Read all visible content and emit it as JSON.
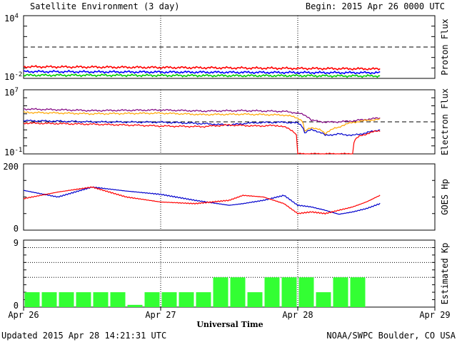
{
  "header": {
    "title": "Satellite Environment (3 day)",
    "begin": "Begin:  2015 Apr 26 0000 UTC"
  },
  "footer": {
    "updated": "Updated 2015 Apr 28 14:21:31 UTC",
    "credit": "NOAA/SWPC Boulder, CO USA"
  },
  "chart_data": {
    "type": "line",
    "xlabel": "Universal Time",
    "x_ticks": [
      "Apr 26",
      "Apr 27",
      "Apr 28",
      "Apr 29"
    ],
    "x_range_days": [
      0,
      3
    ],
    "data_end_day": 2.6,
    "panels": [
      {
        "id": "proton",
        "ylabel": "Proton Flux",
        "scale": "log",
        "ylim_exp": [
          -2,
          4
        ],
        "tick_labels": [
          {
            "base": "10",
            "exp": "4"
          },
          {
            "base": "10",
            "exp": "-2"
          }
        ],
        "threshold": 10,
        "series": [
          {
            "color": "#ff0000",
            "x": [
              0,
              0.5,
              1.0,
              1.5,
              2.0,
              2.3,
              2.6
            ],
            "y": [
              0.13,
              0.12,
              0.11,
              0.1,
              0.09,
              0.085,
              0.08
            ]
          },
          {
            "color": "#0000ff",
            "x": [
              0,
              0.5,
              1.0,
              1.5,
              2.0,
              2.3,
              2.6
            ],
            "y": [
              0.045,
              0.042,
              0.04,
              0.038,
              0.036,
              0.035,
              0.035
            ]
          },
          {
            "color": "#00cc00",
            "x": [
              0,
              0.5,
              1.0,
              1.5,
              2.0,
              2.3,
              2.6
            ],
            "y": [
              0.02,
              0.02,
              0.019,
              0.018,
              0.018,
              0.017,
              0.017
            ]
          }
        ]
      },
      {
        "id": "electron",
        "ylabel": "Electron Flux",
        "scale": "log",
        "ylim_exp": [
          -1,
          7
        ],
        "tick_labels": [
          {
            "base": "10",
            "exp": "7"
          },
          {
            "base": "10",
            "exp": "-1"
          }
        ],
        "threshold": 1000,
        "series": [
          {
            "color": "#800080",
            "x": [
              0,
              0.5,
              1.0,
              1.3,
              1.6,
              1.9,
              2.0,
              2.1,
              2.2,
              2.3,
              2.4,
              2.5,
              2.6
            ],
            "y": [
              40000,
              25000,
              30000,
              22000,
              25000,
              20000,
              12000,
              1500,
              900,
              1000,
              1300,
              2000,
              3000
            ]
          },
          {
            "color": "#ffa500",
            "x": [
              0,
              0.5,
              1.0,
              1.3,
              1.6,
              1.9,
              2.0,
              2.05,
              2.1,
              2.2,
              2.3,
              2.4,
              2.5,
              2.6
            ],
            "y": [
              15000,
              10000,
              12000,
              8000,
              9000,
              7000,
              3000,
              50,
              200,
              30,
              200,
              800,
              1500,
              2000
            ]
          },
          {
            "color": "#0000cc",
            "x": [
              0,
              0.5,
              1.0,
              1.3,
              1.5,
              1.7,
              1.9,
              2.0,
              2.05,
              2.1,
              2.2,
              2.3,
              2.4,
              2.5,
              2.6
            ],
            "y": [
              1400,
              1000,
              900,
              600,
              400,
              800,
              900,
              700,
              40,
              100,
              20,
              30,
              20,
              40,
              100
            ]
          },
          {
            "color": "#ff0000",
            "x": [
              0,
              0.5,
              1.0,
              1.3,
              1.5,
              1.7,
              1.85,
              1.95,
              2.0,
              2.1,
              2.2,
              2.3,
              2.4,
              2.5,
              2.6
            ],
            "y": [
              700,
              500,
              300,
              250,
              400,
              300,
              350,
              100,
              0.1,
              0.1,
              0.1,
              0.1,
              0.1,
              30,
              80
            ]
          }
        ]
      },
      {
        "id": "goes",
        "ylabel": "GOES Hp",
        "scale": "linear",
        "ylim": [
          0,
          200
        ],
        "tick_labels": [
          "200",
          "0"
        ],
        "series": [
          {
            "color": "#0000cc",
            "x": [
              0,
              0.25,
              0.5,
              0.75,
              1.0,
              1.25,
              1.5,
              1.6,
              1.75,
              1.9,
              2.0,
              2.1,
              2.2,
              2.3,
              2.4,
              2.5,
              2.6
            ],
            "y": [
              120,
              100,
              130,
              118,
              108,
              90,
              75,
              80,
              90,
              105,
              75,
              70,
              60,
              48,
              55,
              65,
              80
            ]
          },
          {
            "color": "#ff0000",
            "x": [
              0,
              0.25,
              0.5,
              0.75,
              1.0,
              1.25,
              1.5,
              1.6,
              1.75,
              1.9,
              2.0,
              2.1,
              2.2,
              2.3,
              2.4,
              2.5,
              2.6
            ],
            "y": [
              95,
              115,
              130,
              100,
              85,
              80,
              90,
              105,
              100,
              80,
              50,
              55,
              50,
              60,
              70,
              85,
              105
            ]
          }
        ]
      },
      {
        "id": "kp",
        "ylabel": "Estimated Kp",
        "scale": "linear",
        "ylim": [
          0,
          9
        ],
        "tick_labels": [
          "9",
          "0"
        ],
        "gridlines": [
          4,
          6,
          8,
          9
        ],
        "bar_color": "#33ff33",
        "kp_values": [
          2,
          2,
          2,
          2,
          2,
          2,
          0.3,
          2,
          2,
          2,
          2,
          4,
          4,
          2,
          4,
          4,
          4,
          2,
          4,
          4
        ]
      }
    ]
  }
}
